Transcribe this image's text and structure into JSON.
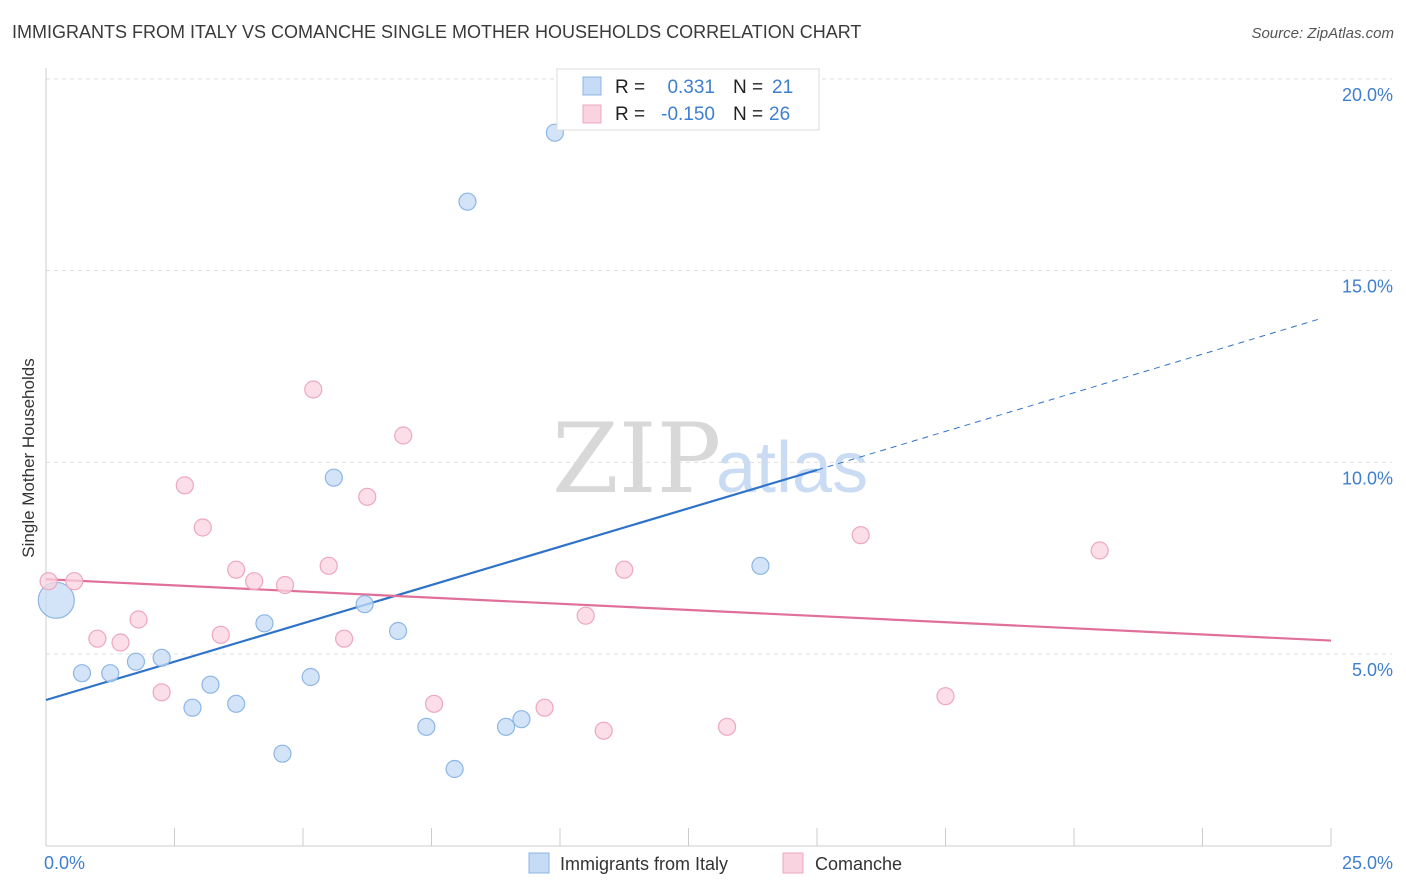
{
  "header": {
    "title": "IMMIGRANTS FROM ITALY VS COMANCHE SINGLE MOTHER HOUSEHOLDS CORRELATION CHART",
    "source": "Source: ZipAtlas.com"
  },
  "watermark": {
    "zip": "ZIP",
    "atlas": "atlas"
  },
  "colors": {
    "blue_fill": "#c6dbf5",
    "blue_stroke": "#8db6e6",
    "blue_line": "#2f73c9",
    "pink_fill": "#f9d3df",
    "pink_stroke": "#eea7bf",
    "pink_line": "#e0709a",
    "grid": "#dddddd",
    "tick_text": "#3f7fcf"
  },
  "legend": {
    "rows": [
      {
        "r_label": "R =",
        "r_value": "0.331",
        "n_label": "N =",
        "n_value": "21"
      },
      {
        "r_label": "R =",
        "r_value": "-0.150",
        "n_label": "N =",
        "n_value": "26"
      }
    ]
  },
  "chart_data": {
    "type": "scatter",
    "title": "IMMIGRANTS FROM ITALY VS COMANCHE SINGLE MOTHER HOUSEHOLDS CORRELATION CHART",
    "xlabel": "",
    "ylabel": "Single Mother Households",
    "xlim": [
      0,
      25
    ],
    "ylim": [
      0,
      20.5
    ],
    "x_tick_labels": [
      "0.0%",
      "25.0%"
    ],
    "y_ticks": [
      5,
      10,
      15,
      20
    ],
    "y_tick_labels": [
      "5.0%",
      "10.0%",
      "15.0%",
      "20.0%"
    ],
    "grid": "horizontal dashed",
    "legend_placement": "top-center",
    "series": [
      {
        "name": "Immigrants from Italy",
        "color": "blue",
        "points": [
          {
            "x": 0.2,
            "y": 6.4,
            "size": "large"
          },
          {
            "x": 0.7,
            "y": 4.5
          },
          {
            "x": 1.25,
            "y": 4.5
          },
          {
            "x": 1.75,
            "y": 4.8
          },
          {
            "x": 2.25,
            "y": 4.9
          },
          {
            "x": 2.85,
            "y": 3.6
          },
          {
            "x": 3.2,
            "y": 4.2
          },
          {
            "x": 3.7,
            "y": 3.7
          },
          {
            "x": 4.25,
            "y": 5.8
          },
          {
            "x": 4.6,
            "y": 2.4
          },
          {
            "x": 5.15,
            "y": 4.4
          },
          {
            "x": 5.6,
            "y": 9.6
          },
          {
            "x": 6.2,
            "y": 6.3
          },
          {
            "x": 6.85,
            "y": 5.6
          },
          {
            "x": 7.4,
            "y": 3.1
          },
          {
            "x": 7.95,
            "y": 2.0
          },
          {
            "x": 8.2,
            "y": 16.8
          },
          {
            "x": 8.95,
            "y": 3.1
          },
          {
            "x": 9.25,
            "y": 3.3
          },
          {
            "x": 9.9,
            "y": 18.6
          },
          {
            "x": 13.9,
            "y": 7.3
          }
        ],
        "trend": {
          "x0": 0.0,
          "y0": 3.8,
          "x1": 15.0,
          "y1": 9.8,
          "dashed_to_x": 24.8,
          "dashed_to_y": 13.75
        }
      },
      {
        "name": "Comanche",
        "color": "pink",
        "points": [
          {
            "x": 0.05,
            "y": 6.9
          },
          {
            "x": 0.55,
            "y": 6.9
          },
          {
            "x": 1.0,
            "y": 5.4
          },
          {
            "x": 1.45,
            "y": 5.3
          },
          {
            "x": 1.8,
            "y": 5.9
          },
          {
            "x": 2.25,
            "y": 4.0
          },
          {
            "x": 2.7,
            "y": 9.4
          },
          {
            "x": 3.05,
            "y": 8.3
          },
          {
            "x": 3.4,
            "y": 5.5
          },
          {
            "x": 3.7,
            "y": 7.2
          },
          {
            "x": 4.05,
            "y": 6.9
          },
          {
            "x": 4.65,
            "y": 6.8
          },
          {
            "x": 5.2,
            "y": 11.9
          },
          {
            "x": 5.5,
            "y": 7.3
          },
          {
            "x": 5.8,
            "y": 5.4
          },
          {
            "x": 6.25,
            "y": 9.1
          },
          {
            "x": 6.95,
            "y": 10.7
          },
          {
            "x": 7.55,
            "y": 3.7
          },
          {
            "x": 9.7,
            "y": 3.6
          },
          {
            "x": 10.5,
            "y": 6.0
          },
          {
            "x": 10.85,
            "y": 3.0
          },
          {
            "x": 11.25,
            "y": 7.2
          },
          {
            "x": 13.25,
            "y": 3.1
          },
          {
            "x": 15.85,
            "y": 8.1
          },
          {
            "x": 17.5,
            "y": 3.9
          },
          {
            "x": 20.5,
            "y": 7.7
          }
        ],
        "trend": {
          "x0": 0.0,
          "y0": 6.95,
          "x1": 25.0,
          "y1": 5.35
        }
      }
    ]
  }
}
